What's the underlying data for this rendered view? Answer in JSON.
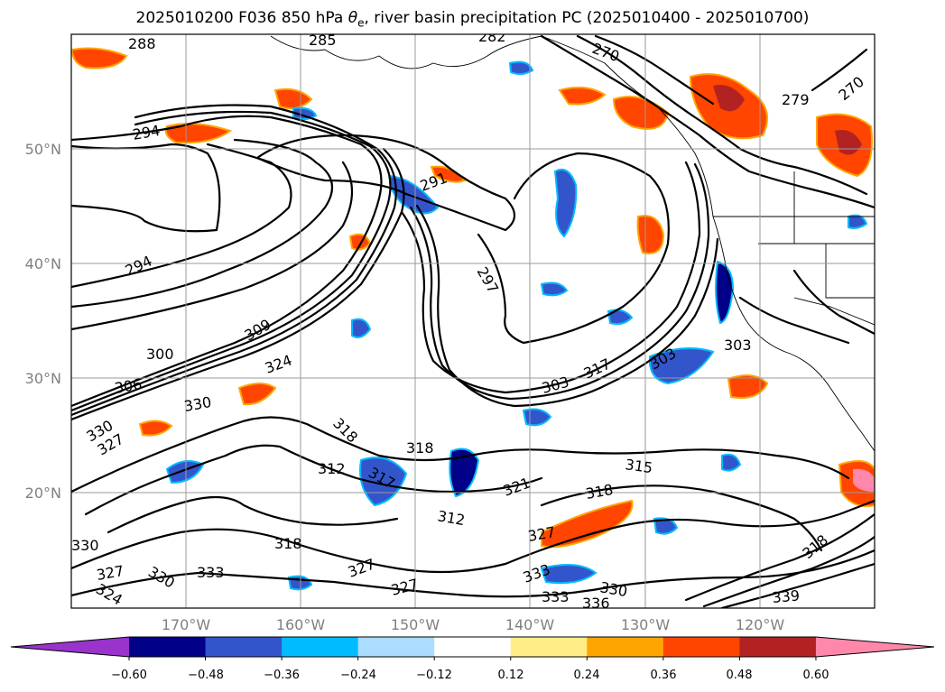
{
  "title": {
    "prefix": "2025010200 F036 850 hPa ",
    "symbol": "θ",
    "subscript": "e",
    "suffix": ", river basin precipitation PC (2025010400 - 2025010700)"
  },
  "map": {
    "lon_labels": [
      "170°W",
      "160°W",
      "150°W",
      "140°W",
      "130°W",
      "120°W"
    ],
    "lat_labels": [
      "50°N",
      "40°N",
      "30°N",
      "20°N"
    ],
    "grid": true,
    "contour_color": "#000000",
    "contour_labels": [
      "288",
      "285",
      "282",
      "270",
      "270",
      "279",
      "294",
      "291",
      "297",
      "294",
      "309",
      "300",
      "306",
      "324",
      "330",
      "330",
      "327",
      "318",
      "318",
      "312",
      "317",
      "303",
      "317",
      "303",
      "303",
      "315",
      "321",
      "318",
      "312",
      "318",
      "330",
      "333",
      "327",
      "327",
      "327",
      "333",
      "330",
      "336",
      "339",
      "318",
      "333",
      "324",
      "327",
      "330"
    ]
  },
  "colorbar": {
    "tick_labels": [
      "−0.60",
      "−0.48",
      "−0.36",
      "−0.24",
      "−0.12",
      "0.12",
      "0.24",
      "0.36",
      "0.48",
      "0.60"
    ],
    "colors": [
      "#9933cc",
      "#000088",
      "#3355cc",
      "#00bbff",
      "#aaddff",
      "#ffffff",
      "#ffee88",
      "#ffa500",
      "#ff4500",
      "#b22222",
      "#ff88aa"
    ],
    "extend": "both"
  }
}
